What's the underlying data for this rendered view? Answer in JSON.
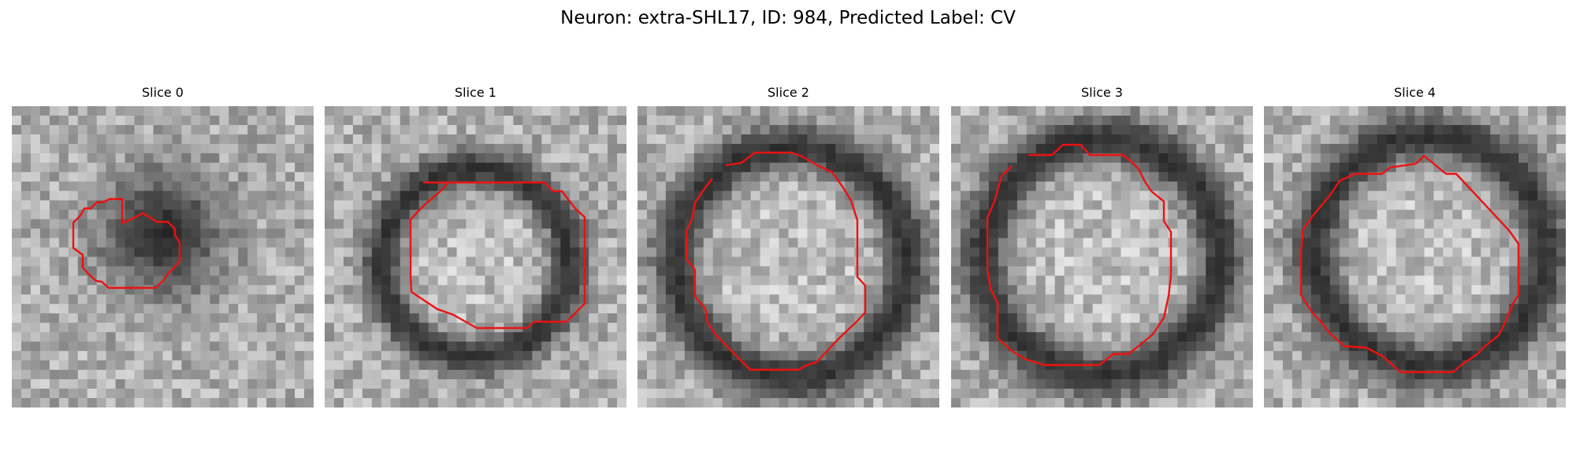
{
  "figure": {
    "title": "Neuron: extra-SHL17, ID: 984, Predicted Label: CV",
    "contour_color": "#ee1111",
    "grid_resolution": 32,
    "colormap": "gray"
  },
  "panels": [
    {
      "label": "Slice 0",
      "seed": 11,
      "blob": "dark",
      "blob_center": [
        0.5,
        0.42
      ],
      "blob_radius": 0.26
    },
    {
      "label": "Slice 1",
      "seed": 23,
      "blob": "ring",
      "blob_center": [
        0.5,
        0.52
      ],
      "blob_radius": 0.31
    },
    {
      "label": "Slice 2",
      "seed": 37,
      "blob": "ring",
      "blob_center": [
        0.51,
        0.52
      ],
      "blob_radius": 0.38
    },
    {
      "label": "Slice 3",
      "seed": 41,
      "blob": "ring",
      "blob_center": [
        0.5,
        0.5
      ],
      "blob_radius": 0.39
    },
    {
      "label": "Slice 4",
      "seed": 59,
      "blob": "ring",
      "blob_center": [
        0.55,
        0.48
      ],
      "blob_radius": 0.38
    }
  ]
}
